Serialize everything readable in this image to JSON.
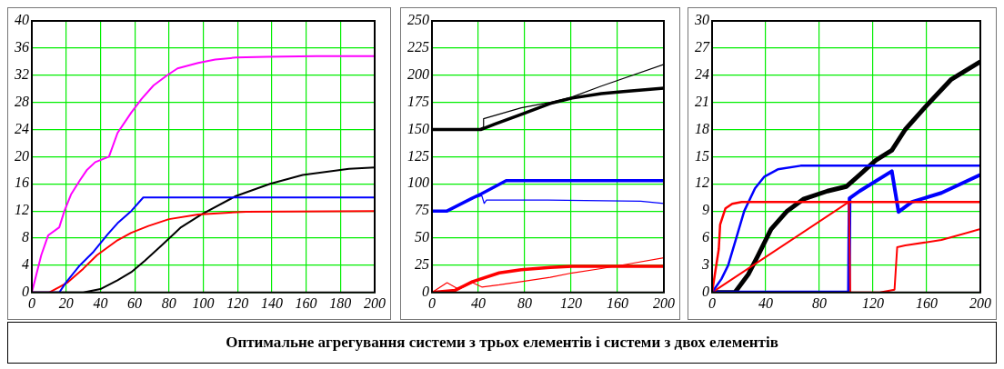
{
  "chart_data": [
    {
      "type": "line",
      "xlim": [
        0,
        200
      ],
      "xticks": [
        0,
        20,
        40,
        60,
        80,
        100,
        120,
        140,
        160,
        180,
        200
      ],
      "ylim": [
        0,
        40
      ],
      "yticks": [
        0,
        4,
        8,
        12,
        16,
        20,
        24,
        28,
        32,
        36,
        40
      ],
      "grid": true,
      "legend": false,
      "marker": "none",
      "line_style": "solid",
      "annotations": [
        "Оптимальне агрегування системи з трьох елементів і системи з двох елементів"
      ],
      "series": [
        {
          "color": "#ff00ff",
          "x": [
            0,
            5.5,
            9.5,
            16,
            19,
            23,
            28,
            32,
            37,
            45,
            50,
            58,
            64,
            71,
            79,
            85,
            97,
            107,
            119,
            137,
            166,
            200
          ],
          "values": [
            0,
            5.5,
            8.4,
            9.6,
            12,
            14.5,
            16.5,
            18,
            19.2,
            20,
            23.5,
            26.5,
            28.5,
            30.5,
            32,
            33,
            33.8,
            34.3,
            34.6,
            34.7,
            34.8,
            34.8
          ]
        },
        {
          "color": "#0000ff",
          "x": [
            0,
            16,
            20,
            28,
            36,
            44,
            50,
            58,
            65,
            200
          ],
          "values": [
            0,
            0,
            1.5,
            4,
            6,
            8.5,
            10.2,
            12,
            14,
            14
          ]
        },
        {
          "color": "#ff0000",
          "x": [
            0,
            10,
            16,
            21,
            30,
            38,
            50,
            58,
            68,
            80,
            97,
            125,
            200
          ],
          "values": [
            0,
            0,
            0.8,
            1.5,
            3.5,
            5.5,
            7.7,
            8.8,
            9.8,
            10.8,
            11.5,
            11.9,
            12
          ]
        },
        {
          "color": "#000000",
          "x": [
            0,
            30,
            40,
            50,
            58,
            66,
            76,
            87,
            99,
            119,
            139,
            158,
            185,
            200
          ],
          "values": [
            0,
            0,
            0.5,
            1.8,
            3,
            4.7,
            7,
            9.6,
            11.5,
            14.2,
            16,
            17.3,
            18.2,
            18.4
          ]
        }
      ]
    },
    {
      "type": "line",
      "xlim": [
        0,
        200
      ],
      "xticks": [
        0,
        40,
        80,
        120,
        160,
        200
      ],
      "ylim": [
        0,
        250
      ],
      "yticks": [
        0,
        25,
        50,
        75,
        100,
        125,
        150,
        175,
        200,
        225,
        250
      ],
      "grid": true,
      "legend": false,
      "marker": "none",
      "line_style": "solid",
      "series": [
        {
          "color": "#000000",
          "x": [
            0,
            42,
            54,
            77,
            102,
            121,
            146,
            165,
            200
          ],
          "values": [
            150,
            150,
            155,
            164,
            174,
            179,
            183,
            185,
            188
          ]
        },
        {
          "color": "#000000",
          "x": [
            0,
            40,
            44,
            44.5,
            77,
            102,
            121,
            146,
            200
          ],
          "values": [
            150,
            150,
            152,
            160,
            170,
            175,
            180,
            190,
            210
          ]
        },
        {
          "color": "#0000ff",
          "x": [
            0,
            13,
            35,
            43,
            64,
            200
          ],
          "values": [
            75,
            75,
            87,
            91,
            103,
            103
          ]
        },
        {
          "color": "#0000ff",
          "x": [
            0,
            13,
            35,
            43,
            45,
            47,
            100,
            180,
            200
          ],
          "values": [
            75,
            75,
            87,
            89,
            82,
            85,
            85,
            84,
            82
          ]
        },
        {
          "color": "#ff0000",
          "x": [
            0,
            20,
            35,
            58,
            77,
            102,
            121,
            200
          ],
          "values": [
            0,
            2,
            10,
            18,
            21,
            23,
            24,
            24
          ]
        },
        {
          "color": "#ff0000",
          "x": [
            0,
            13,
            23,
            35,
            43,
            58,
            77,
            102,
            121,
            146,
            168,
            200
          ],
          "values": [
            0,
            9,
            3,
            9,
            5,
            7,
            10,
            14,
            18,
            22,
            26,
            32
          ]
        }
      ]
    },
    {
      "type": "line",
      "xlim": [
        0,
        200
      ],
      "xticks": [
        0,
        40,
        80,
        120,
        160,
        200
      ],
      "ylim": [
        0,
        30
      ],
      "yticks": [
        0,
        3,
        6,
        9,
        12,
        15,
        18,
        21,
        24,
        27,
        30
      ],
      "grid": true,
      "legend": false,
      "marker": "none",
      "line_style": "solid",
      "series": [
        {
          "color": "#ff0000",
          "x": [
            0,
            5,
            6,
            10,
            15,
            22,
            200
          ],
          "values": [
            0,
            4.8,
            7.5,
            9.3,
            9.8,
            10,
            10
          ]
        },
        {
          "color": "#0000ff",
          "x": [
            0,
            7,
            12,
            18,
            24,
            32,
            39,
            49,
            66,
            200
          ],
          "values": [
            0,
            1.5,
            3,
            6,
            9,
            11.5,
            12.8,
            13.6,
            14,
            14
          ]
        },
        {
          "color": "#ff0000",
          "x": [
            0,
            102,
            103,
            125,
            136,
            138,
            144,
            171,
            200
          ],
          "values": [
            0,
            10,
            0,
            0,
            0.3,
            5,
            5.2,
            5.8,
            7
          ]
        },
        {
          "color": "#0000ff",
          "x": [
            0,
            102,
            102.5,
            110,
            134,
            139,
            149,
            171,
            200
          ],
          "values": [
            0,
            0,
            10.4,
            11.2,
            13.4,
            8.9,
            10,
            11,
            13
          ]
        },
        {
          "color": "#000000",
          "x": [
            0,
            17,
            27,
            34,
            44,
            56,
            68,
            86,
            100,
            110,
            122,
            134,
            144,
            159,
            178,
            200
          ],
          "values": [
            0,
            0,
            2,
            4,
            7,
            9,
            10.3,
            11.2,
            11.7,
            13,
            14.6,
            15.7,
            18,
            20.5,
            23.5,
            25.5
          ]
        }
      ]
    }
  ]
}
